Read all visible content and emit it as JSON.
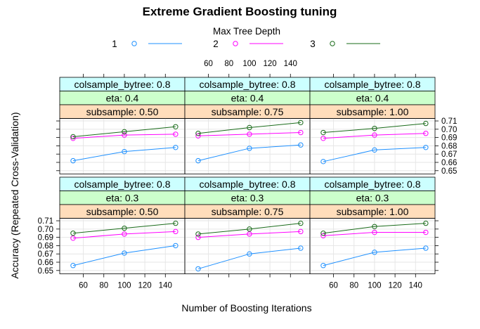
{
  "chart_data": {
    "type": "line",
    "title": "Extreme Gradient Boosting tuning",
    "xlabel": "Number of Boosting Iterations",
    "ylabel": "Accuracy (Repeated Cross-Validation)",
    "xlim": [
      37,
      159
    ],
    "ylim": [
      0.646,
      0.713
    ],
    "x_ticks": [
      60,
      80,
      100,
      120,
      140
    ],
    "y_ticks": [
      0.65,
      0.66,
      0.67,
      0.68,
      0.69,
      0.7,
      0.71
    ],
    "y_tick_labels": [
      "0.65",
      "0.66",
      "0.67",
      "0.68",
      "0.69",
      "0.70",
      "0.71"
    ],
    "legend": {
      "title": "Max Tree Depth",
      "position": "top",
      "entries": [
        {
          "label": "1",
          "color": "#1e90ff"
        },
        {
          "label": "2",
          "color": "#ff00ff"
        },
        {
          "label": "3",
          "color": "#1a6b1a"
        }
      ]
    },
    "strip_colors": {
      "colsample_bytree": "#ccffff",
      "eta": "#ccffcc",
      "subsample": "#ffddbb"
    },
    "x": [
      50,
      100,
      150
    ],
    "panels": [
      {
        "strips": [
          "colsample_bytree: 0.8",
          "eta: 0.4",
          "subsample: 0.50"
        ],
        "series": [
          {
            "name": "1",
            "values": [
              0.662,
              0.673,
              0.678
            ]
          },
          {
            "name": "2",
            "values": [
              0.689,
              0.693,
              0.694
            ]
          },
          {
            "name": "3",
            "values": [
              0.691,
              0.697,
              0.703
            ]
          }
        ]
      },
      {
        "strips": [
          "colsample_bytree: 0.8",
          "eta: 0.4",
          "subsample: 0.75"
        ],
        "series": [
          {
            "name": "1",
            "values": [
              0.662,
              0.677,
              0.681
            ]
          },
          {
            "name": "2",
            "values": [
              0.692,
              0.694,
              0.696
            ]
          },
          {
            "name": "3",
            "values": [
              0.695,
              0.702,
              0.708
            ]
          }
        ]
      },
      {
        "strips": [
          "colsample_bytree: 0.8",
          "eta: 0.4",
          "subsample: 1.00"
        ],
        "series": [
          {
            "name": "1",
            "values": [
              0.661,
              0.675,
              0.678
            ]
          },
          {
            "name": "2",
            "values": [
              0.689,
              0.693,
              0.695
            ]
          },
          {
            "name": "3",
            "values": [
              0.696,
              0.701,
              0.707
            ]
          }
        ]
      },
      {
        "strips": [
          "colsample_bytree: 0.8",
          "eta: 0.3",
          "subsample: 0.50"
        ],
        "series": [
          {
            "name": "1",
            "values": [
              0.656,
              0.671,
              0.68
            ]
          },
          {
            "name": "2",
            "values": [
              0.689,
              0.694,
              0.697
            ]
          },
          {
            "name": "3",
            "values": [
              0.695,
              0.701,
              0.707
            ]
          }
        ]
      },
      {
        "strips": [
          "colsample_bytree: 0.8",
          "eta: 0.3",
          "subsample: 0.75"
        ],
        "series": [
          {
            "name": "1",
            "values": [
              0.652,
              0.67,
              0.677
            ]
          },
          {
            "name": "2",
            "values": [
              0.69,
              0.694,
              0.697
            ]
          },
          {
            "name": "3",
            "values": [
              0.694,
              0.7,
              0.707
            ]
          }
        ]
      },
      {
        "strips": [
          "colsample_bytree: 0.8",
          "eta: 0.3",
          "subsample: 1.00"
        ],
        "series": [
          {
            "name": "1",
            "values": [
              0.656,
              0.672,
              0.677
            ]
          },
          {
            "name": "2",
            "values": [
              0.692,
              0.696,
              0.696
            ]
          },
          {
            "name": "3",
            "values": [
              0.695,
              0.703,
              0.707
            ]
          }
        ]
      }
    ]
  }
}
